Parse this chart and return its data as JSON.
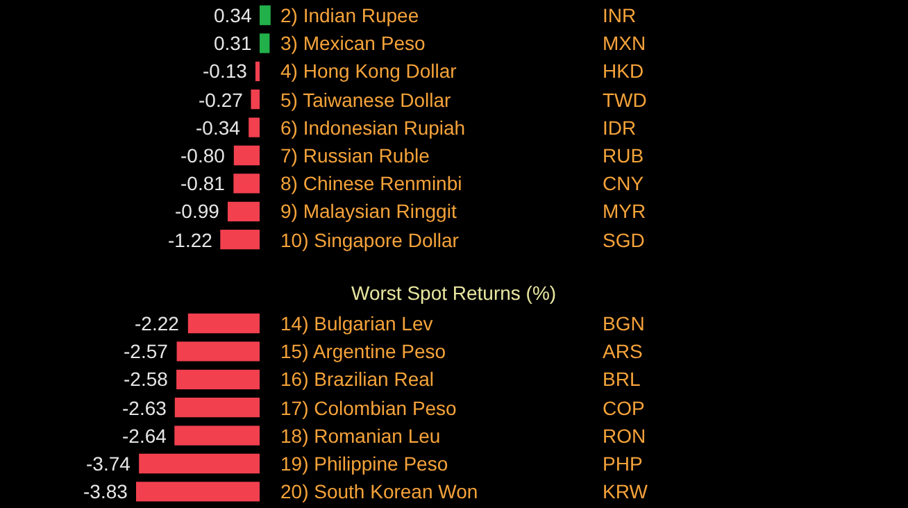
{
  "chart_data": [
    {
      "type": "bar",
      "orientation": "horizontal",
      "categories": [
        "2) Indian Rupee",
        "3) Mexican Peso",
        "4) Hong Kong Dollar",
        "5) Taiwanese Dollar",
        "6) Indonesian Rupiah",
        "7) Russian Ruble",
        "8) Chinese Renminbi",
        "9) Malaysian Ringgit",
        "10) Singapore Dollar"
      ],
      "values": [
        0.34,
        0.31,
        -0.13,
        -0.27,
        -0.34,
        -0.8,
        -0.81,
        -0.99,
        -1.22
      ],
      "value_labels": [
        "0.34",
        "0.31",
        "-0.13",
        "-0.27",
        "-0.34",
        "-0.80",
        "-0.81",
        "-0.99",
        "-1.22"
      ],
      "colors": [
        "#22b04a",
        "#22b04a",
        "#f2404f",
        "#f2404f",
        "#f2404f",
        "#f2404f",
        "#f2404f",
        "#f2404f",
        "#f2404f"
      ],
      "annotations": [
        "INR",
        "MXN",
        "HKD",
        "TWD",
        "IDR",
        "RUB",
        "CNY",
        "MYR",
        "SGD"
      ]
    },
    {
      "type": "bar",
      "orientation": "horizontal",
      "title": "Worst Spot Returns (%)",
      "categories": [
        "14) Bulgarian Lev",
        "15) Argentine Peso",
        "16) Brazilian Real",
        "17) Colombian Peso",
        "18) Romanian Leu",
        "19) Philippine Peso",
        "20) South Korean Won"
      ],
      "values": [
        -2.22,
        -2.57,
        -2.58,
        -2.63,
        -2.64,
        -3.74,
        -3.83
      ],
      "value_labels": [
        "-2.22",
        "-2.57",
        "-2.58",
        "-2.63",
        "-2.64",
        "-3.74",
        "-3.83"
      ],
      "colors": [
        "#f2404f",
        "#f2404f",
        "#f2404f",
        "#f2404f",
        "#f2404f",
        "#f2404f",
        "#f2404f"
      ],
      "annotations": [
        "BGN",
        "ARS",
        "BRL",
        "COP",
        "RON",
        "PHP",
        "KRW"
      ]
    }
  ]
}
